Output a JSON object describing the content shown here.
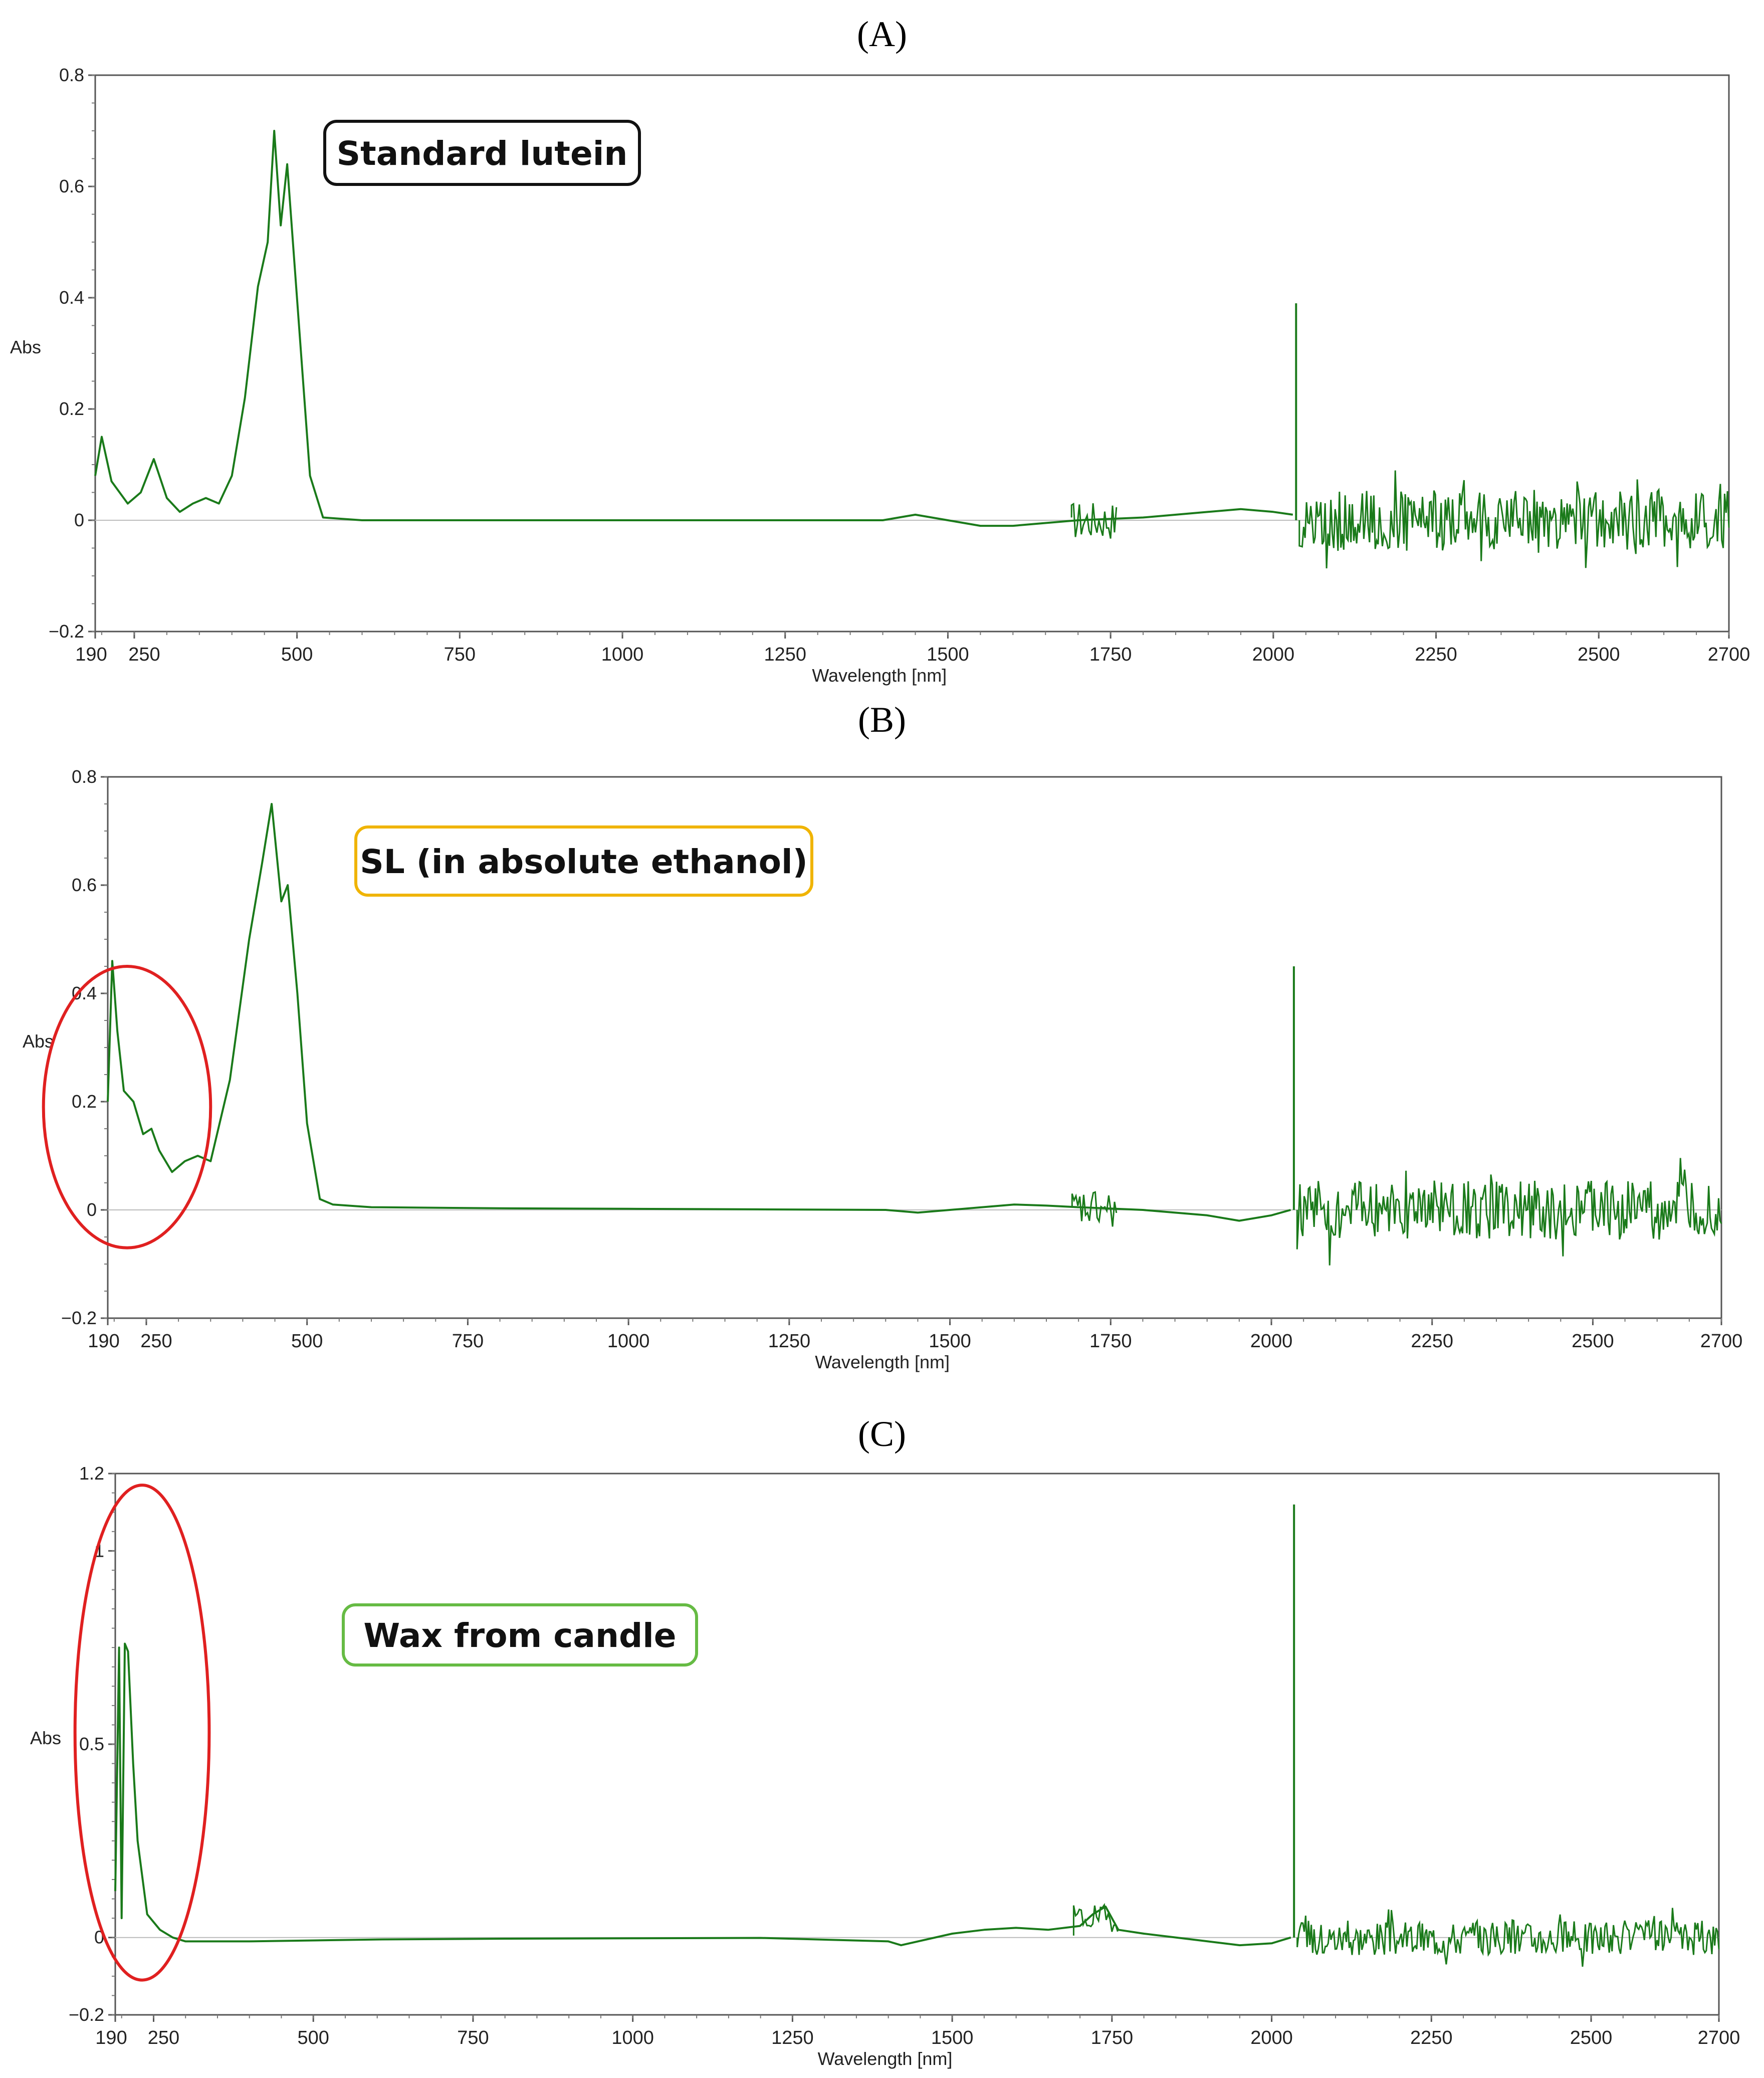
{
  "chart_data": [
    {
      "type": "line",
      "panel_label": "(A)",
      "annotation": "Standard lutein",
      "annotation_border_color": "#111111",
      "xlabel": "Wavelength [nm]",
      "ylabel": "Abs",
      "xlim": [
        190,
        2700
      ],
      "ylim": [
        -0.2,
        0.8
      ],
      "xticks": [
        "190",
        "250",
        "500",
        "750",
        "1000",
        "1250",
        "1500",
        "1750",
        "2000",
        "2250",
        "2500",
        "2700"
      ],
      "yticks": [
        "0.8",
        "0.6",
        "0.4",
        "0.2",
        "0",
        "−0.2"
      ],
      "series_color": "#1a7a1a",
      "series": [
        {
          "x": [
            190,
            200,
            215,
            240,
            260,
            280,
            300,
            320,
            340,
            360,
            380,
            400,
            420,
            440,
            455,
            465,
            475,
            485,
            500,
            520,
            540,
            600,
            800,
            1000,
            1200,
            1400,
            1450,
            1500,
            1550,
            1600,
            1650,
            1700,
            1800,
            1900,
            1950,
            2000,
            2030
          ],
          "y": [
            0.08,
            0.15,
            0.07,
            0.03,
            0.05,
            0.11,
            0.04,
            0.015,
            0.03,
            0.04,
            0.03,
            0.08,
            0.22,
            0.42,
            0.5,
            0.7,
            0.53,
            0.64,
            0.4,
            0.08,
            0.005,
            0,
            0,
            0,
            0,
            0,
            0.01,
            0.0,
            -0.01,
            -0.01,
            -0.005,
            0.0,
            0.005,
            0.015,
            0.02,
            0.015,
            0.01
          ]
        }
      ],
      "spike": {
        "x": 2035,
        "y": 0.39
      },
      "noise": {
        "x_start": 2040,
        "x_end": 2700,
        "amplitude": 0.055
      }
    },
    {
      "type": "line",
      "panel_label": "(B)",
      "annotation": "SL (in absolute ethanol)",
      "annotation_border_color": "#f0b400",
      "xlabel": "Wavelength [nm]",
      "ylabel": "Abs",
      "xlim": [
        190,
        2700
      ],
      "ylim": [
        -0.2,
        0.8
      ],
      "xticks": [
        "190",
        "250",
        "500",
        "750",
        "1000",
        "1250",
        "1500",
        "1750",
        "2000",
        "2250",
        "2500",
        "2700"
      ],
      "yticks": [
        "0.8",
        "0.6",
        "0.4",
        "0.2",
        "0",
        "−0.2"
      ],
      "series_color": "#1a7a1a",
      "series": [
        {
          "x": [
            190,
            197,
            205,
            215,
            230,
            245,
            258,
            270,
            290,
            310,
            330,
            350,
            380,
            410,
            430,
            445,
            460,
            470,
            485,
            500,
            520,
            540,
            600,
            800,
            1000,
            1200,
            1400,
            1450,
            1500,
            1550,
            1600,
            1650,
            1700,
            1800,
            1900,
            1950,
            2000,
            2030
          ],
          "y": [
            0.2,
            0.46,
            0.33,
            0.22,
            0.2,
            0.14,
            0.15,
            0.11,
            0.07,
            0.09,
            0.1,
            0.09,
            0.24,
            0.5,
            0.64,
            0.75,
            0.57,
            0.6,
            0.4,
            0.16,
            0.02,
            0.01,
            0.005,
            0.003,
            0.002,
            0.001,
            0.0,
            -0.005,
            0.0,
            0.005,
            0.01,
            0.008,
            0.005,
            0.0,
            -0.01,
            -0.02,
            -0.01,
            0.0
          ]
        }
      ],
      "spike": {
        "x": 2035,
        "y": 0.45
      },
      "noise": {
        "x_start": 2040,
        "x_end": 2700,
        "amplitude": 0.055
      },
      "highlight_ellipse": {
        "cx": 220,
        "cy": 0.19,
        "rx": 130,
        "ry": 0.26,
        "color": "#e02020"
      }
    },
    {
      "type": "line",
      "panel_label": "(C)",
      "annotation": "Wax from candle",
      "annotation_border_color": "#66bb44",
      "xlabel": "Wavelength [nm]",
      "ylabel": "Abs",
      "xlim": [
        190,
        2700
      ],
      "ylim": [
        -0.2,
        1.2
      ],
      "xticks": [
        "190",
        "250",
        "500",
        "750",
        "1000",
        "1250",
        "1500",
        "1750",
        "2000",
        "2250",
        "2500",
        "2700"
      ],
      "yticks": [
        "1.2",
        "1",
        "0.5",
        "0",
        "−0.2"
      ],
      "series_color": "#1a7a1a",
      "series": [
        {
          "x": [
            190,
            196,
            200,
            205,
            210,
            218,
            225,
            240,
            260,
            280,
            300,
            400,
            600,
            800,
            1000,
            1200,
            1400,
            1420,
            1500,
            1550,
            1600,
            1650,
            1700,
            1720,
            1740,
            1760,
            1800,
            1900,
            1950,
            2000,
            2030
          ],
          "y": [
            0.12,
            0.75,
            0.05,
            0.76,
            0.74,
            0.45,
            0.25,
            0.06,
            0.02,
            0.0,
            -0.01,
            -0.01,
            -0.005,
            -0.003,
            -0.002,
            -0.001,
            -0.01,
            -0.02,
            0.01,
            0.02,
            0.025,
            0.02,
            0.03,
            0.06,
            0.08,
            0.02,
            0.01,
            -0.01,
            -0.02,
            -0.015,
            0.0
          ]
        }
      ],
      "spike": {
        "x": 2035,
        "y": 1.12
      },
      "noise": {
        "x_start": 2040,
        "x_end": 2700,
        "amplitude": 0.045
      },
      "highlight_ellipse": {
        "cx": 232,
        "cy": 0.53,
        "rx": 105,
        "ry": 0.64,
        "color": "#e02020"
      }
    }
  ]
}
